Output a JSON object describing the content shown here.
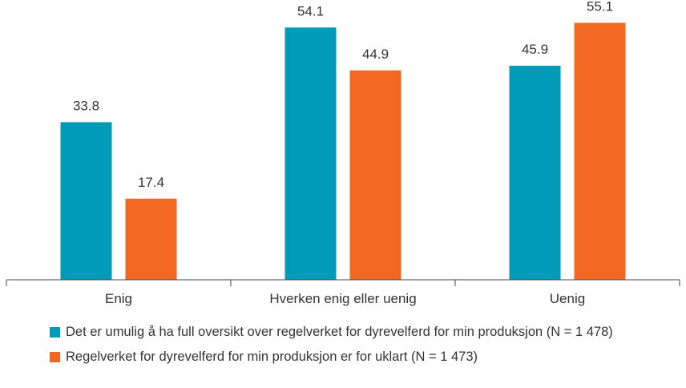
{
  "chart_data": {
    "type": "bar",
    "categories": [
      "Enig",
      "Hverken enig eller uenig",
      "Uenig"
    ],
    "series": [
      {
        "name": "Det er umulig å ha full oversikt over regelverket for dyrevelferd for min produksjon (N = 1 478)",
        "color": "#009bb8",
        "values": [
          33.8,
          54.1,
          45.9
        ]
      },
      {
        "name": "Regelverket for dyrevelferd for min produksjon er for uklart (N = 1 473)",
        "color": "#f26722",
        "values": [
          17.4,
          44.9,
          55.1
        ]
      }
    ],
    "ylim": [
      0,
      60
    ],
    "data_labels": true,
    "grid": false,
    "legend_position": "bottom-left"
  }
}
